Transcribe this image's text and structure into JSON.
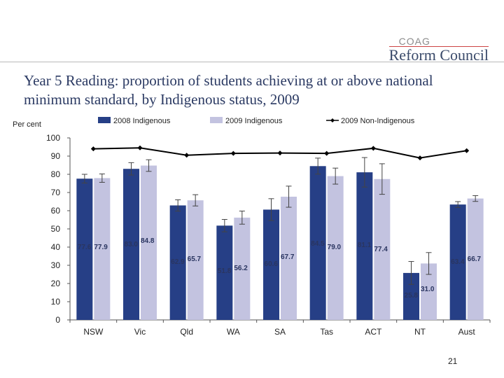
{
  "header": {
    "logo_top": "COAG",
    "logo_bottom": "Reform Council"
  },
  "slide": {
    "title": "Year 5 Reading: proportion of students achieving at or above national minimum standard, by Indigenous status, 2009",
    "page_number": "21"
  },
  "colors": {
    "series_2008": "#263f86",
    "series_2009": "#c3c3e0",
    "series_non_indigenous": "#000000",
    "error_bar": "#444444",
    "title": "#2b3a63"
  },
  "chart_data": {
    "type": "bar",
    "ylabel": "Per cent",
    "ylim": [
      0,
      100
    ],
    "yticks": [
      0,
      10,
      20,
      30,
      40,
      50,
      60,
      70,
      80,
      90,
      100
    ],
    "grid": false,
    "legend_position": "top",
    "categories": [
      "NSW",
      "Vic",
      "Qld",
      "WA",
      "SA",
      "Tas",
      "ACT",
      "NT",
      "Aust"
    ],
    "series": [
      {
        "name": "2008 Indigenous",
        "kind": "bar",
        "values": [
          77.6,
          83.0,
          62.9,
          51.8,
          60.6,
          84.5,
          81.1,
          25.8,
          63.4
        ],
        "labels": [
          "77.6",
          "83.0",
          "62.9",
          "51.8",
          "60.6",
          "84.5",
          "81.1",
          "25.8",
          "63.4"
        ],
        "error_low": [
          75.2,
          79.6,
          59.8,
          48.4,
          54.6,
          80.1,
          73.0,
          19.5,
          61.8
        ],
        "error_high": [
          80.0,
          86.4,
          66.0,
          55.2,
          66.6,
          88.9,
          89.2,
          32.1,
          65.0
        ]
      },
      {
        "name": "2009 Indigenous",
        "kind": "bar",
        "values": [
          77.9,
          84.8,
          65.7,
          56.2,
          67.7,
          79.0,
          77.4,
          31.0,
          66.7
        ],
        "labels": [
          "77.9",
          "84.8",
          "65.7",
          "56.2",
          "67.7",
          "79.0",
          "77.4",
          "31.0",
          "66.7"
        ],
        "error_low": [
          75.6,
          81.6,
          62.6,
          52.6,
          61.9,
          74.6,
          69.0,
          25.0,
          65.1
        ],
        "error_high": [
          80.2,
          88.0,
          68.8,
          59.8,
          73.5,
          83.4,
          85.8,
          37.0,
          68.3
        ]
      },
      {
        "name": "2009 Non-Indigenous",
        "kind": "line",
        "values": [
          94.0,
          94.5,
          90.5,
          91.5,
          91.7,
          91.5,
          94.3,
          89.0,
          93.0
        ]
      }
    ]
  }
}
